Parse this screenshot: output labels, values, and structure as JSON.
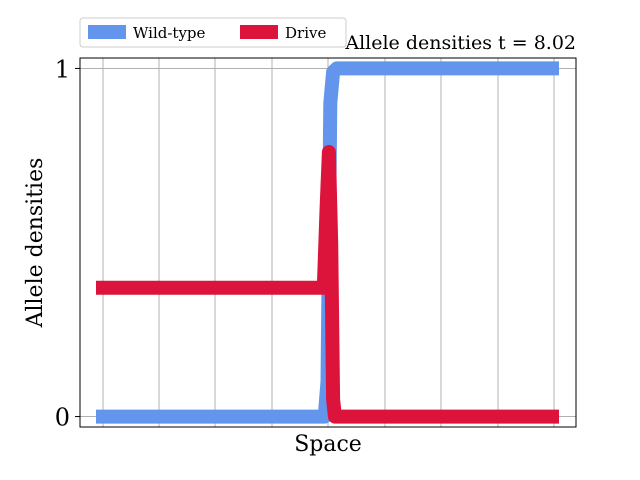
{
  "chart_data": {
    "type": "line",
    "title": "Allele densities t = 8.02",
    "xlabel": "Space",
    "ylabel": "Allele densities",
    "xlim": [
      0,
      1
    ],
    "ylim": [
      -0.03,
      1.03
    ],
    "y_ticks": [
      0,
      1
    ],
    "y_tick_labels": [
      "0",
      "1"
    ],
    "x_tick_labels": [],
    "grid": true,
    "legend_position": "top-left",
    "series": [
      {
        "name": "Wild-type",
        "color": "#6495ED",
        "x": [
          0,
          0.494,
          0.5,
          0.506,
          0.512,
          0.52,
          1
        ],
        "y": [
          0,
          0,
          0.1,
          0.9,
          0.99,
          1,
          1
        ]
      },
      {
        "name": "Drive",
        "color": "#DC143C",
        "x": [
          0,
          0.492,
          0.498,
          0.503,
          0.508,
          0.512,
          0.516,
          1
        ],
        "y": [
          0.37,
          0.37,
          0.6,
          0.76,
          0.5,
          0.05,
          0,
          0
        ]
      }
    ]
  }
}
